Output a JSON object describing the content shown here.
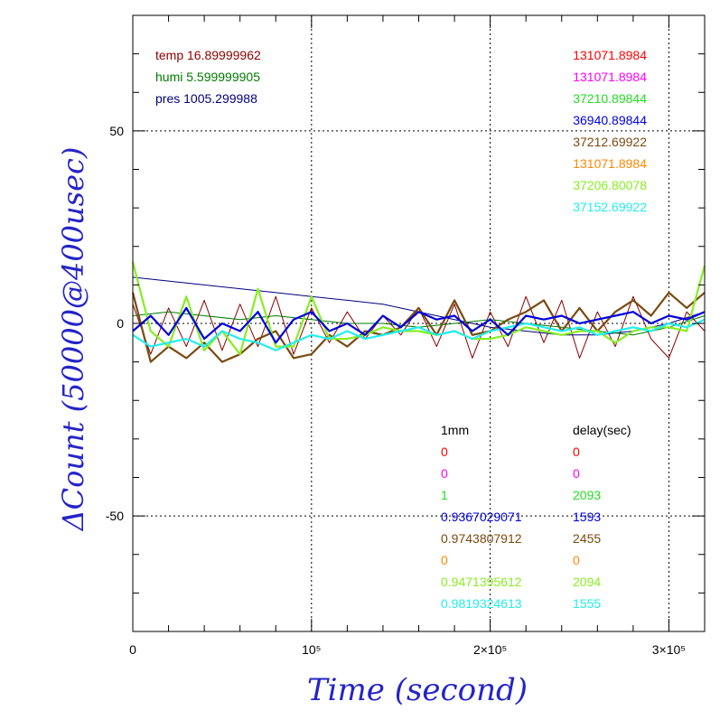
{
  "chart_data": {
    "type": "line",
    "xlabel": "Time (second)",
    "ylabel": "ΔCount (50000@400usec)",
    "xlim": [
      0,
      320000
    ],
    "ylim": [
      -80,
      80
    ],
    "grid": true,
    "x_ticks": [
      {
        "value": 0,
        "label": "0"
      },
      {
        "value": 100000,
        "label": "10⁵"
      },
      {
        "value": 200000,
        "label": "2×10⁵"
      },
      {
        "value": 300000,
        "label": "3×10⁵"
      }
    ],
    "y_ticks": [
      {
        "value": 50,
        "label": "50"
      },
      {
        "value": 0,
        "label": "0"
      },
      {
        "value": -50,
        "label": "-50"
      }
    ],
    "env_labels": [
      {
        "text": "temp 16.89999962",
        "color": "#8b0000"
      },
      {
        "text": "humi 5.599999905",
        "color": "#007a00"
      },
      {
        "text": "pres 1005.299988",
        "color": "#000080"
      }
    ],
    "top_right_values": [
      {
        "text": "131071.8984",
        "color": "#ff0000"
      },
      {
        "text": "131071.8984",
        "color": "#ff00ff"
      },
      {
        "text": "37210.89844",
        "color": "#22dd22"
      },
      {
        "text": "36940.89844",
        "color": "#0000dd"
      },
      {
        "text": "37212.69922",
        "color": "#7a4a10"
      },
      {
        "text": "131071.8984",
        "color": "#ff8800"
      },
      {
        "text": "37206.80078",
        "color": "#88ee22"
      },
      {
        "text": "37152.69922",
        "color": "#22eeee"
      }
    ],
    "table_headers": {
      "left": "1mm",
      "right": "delay(sec)"
    },
    "table_rows": [
      {
        "a": "0",
        "b": "0",
        "color": "#ff0000"
      },
      {
        "a": "0",
        "b": "0",
        "color": "#ff00ff"
      },
      {
        "a": "1",
        "b": "2093",
        "color": "#22dd22"
      },
      {
        "a": "0.9367029071",
        "b": "1593",
        "color": "#0000dd"
      },
      {
        "a": "0.9743807912",
        "b": "2455",
        "color": "#7a4a10"
      },
      {
        "a": "0",
        "b": "0",
        "color": "#ff8800"
      },
      {
        "a": "0.9471395612",
        "b": "2094",
        "color": "#88ee22"
      },
      {
        "a": "0.9819324613",
        "b": "1555",
        "color": "#22eeee"
      }
    ],
    "series": [
      {
        "color": "#8b0000",
        "x": [
          0,
          10000,
          20000,
          30000,
          40000,
          50000,
          60000,
          70000,
          80000,
          90000,
          100000,
          110000,
          120000,
          130000,
          140000,
          150000,
          160000,
          170000,
          180000,
          190000,
          200000,
          210000,
          220000,
          230000,
          240000,
          250000,
          260000,
          270000,
          280000,
          290000,
          300000,
          310000,
          320000
        ],
        "y": [
          5,
          -8,
          4,
          -6,
          6,
          -7,
          5,
          -6,
          7,
          -8,
          4,
          -5,
          3,
          -4,
          2,
          -3,
          4,
          -6,
          5,
          -9,
          3,
          -6,
          7,
          -5,
          6,
          -9,
          3,
          -6,
          7,
          -4,
          -9,
          3,
          -2
        ]
      },
      {
        "color": "#000080",
        "x": [
          0,
          20000,
          40000,
          60000,
          80000,
          100000,
          120000,
          140000,
          160000,
          180000,
          200000,
          220000,
          240000,
          260000,
          280000,
          300000,
          320000
        ],
        "y": [
          12,
          11,
          10,
          9,
          8,
          7,
          6,
          5,
          3,
          1,
          -1,
          -2,
          -3,
          -3,
          -2,
          0,
          3
        ]
      },
      {
        "color": "#007a00",
        "x": [
          0,
          20000,
          40000,
          60000,
          80000,
          100000,
          120000,
          140000,
          160000,
          180000,
          200000,
          220000,
          240000,
          260000,
          280000,
          300000,
          320000
        ],
        "y": [
          2,
          3,
          2,
          1,
          2,
          1,
          0,
          0,
          -1,
          0,
          1,
          0,
          -1,
          -2,
          -3,
          -1,
          2
        ]
      },
      {
        "color": "#7a4a10",
        "x": [
          0,
          10000,
          20000,
          30000,
          40000,
          50000,
          60000,
          70000,
          80000,
          90000,
          100000,
          110000,
          120000,
          130000,
          140000,
          150000,
          160000,
          170000,
          180000,
          190000,
          200000,
          210000,
          220000,
          230000,
          240000,
          250000,
          260000,
          270000,
          280000,
          290000,
          300000,
          310000,
          320000
        ],
        "y": [
          8,
          -10,
          -6,
          -9,
          -5,
          -10,
          -8,
          -4,
          -2,
          -9,
          -8,
          -3,
          -6,
          -2,
          -3,
          -1,
          4,
          -3,
          6,
          -3,
          -2,
          1,
          3,
          6,
          -2,
          4,
          -2,
          3,
          6,
          2,
          8,
          4,
          8
        ]
      },
      {
        "color": "#88ee22",
        "x": [
          0,
          10000,
          20000,
          30000,
          40000,
          50000,
          60000,
          70000,
          80000,
          90000,
          100000,
          110000,
          120000,
          130000,
          140000,
          150000,
          160000,
          170000,
          180000,
          190000,
          200000,
          210000,
          220000,
          230000,
          240000,
          250000,
          260000,
          270000,
          280000,
          290000,
          300000,
          310000,
          320000
        ],
        "y": [
          16,
          -2,
          -6,
          7,
          -7,
          -2,
          -8,
          9,
          -6,
          -6,
          7,
          -4,
          -4,
          -3,
          -1,
          -2,
          -2,
          -3,
          -2,
          -4,
          -4,
          -3,
          -1,
          -2,
          -3,
          -2,
          -2,
          -5,
          -2,
          -1,
          -1,
          -2,
          15
        ]
      },
      {
        "color": "#22eeee",
        "x": [
          0,
          10000,
          20000,
          30000,
          40000,
          50000,
          60000,
          70000,
          80000,
          90000,
          100000,
          110000,
          120000,
          130000,
          140000,
          150000,
          160000,
          170000,
          180000,
          190000,
          200000,
          210000,
          220000,
          230000,
          240000,
          250000,
          260000,
          270000,
          280000,
          290000,
          300000,
          310000,
          320000
        ],
        "y": [
          -3,
          -6,
          -5,
          -4,
          -6,
          -2,
          -4,
          -5,
          -7,
          -5,
          -3,
          -4,
          -2,
          -4,
          -3,
          -2,
          -1,
          -3,
          -2,
          -4,
          -2,
          -1,
          0,
          -1,
          -2,
          -1,
          -3,
          -2,
          -1,
          -2,
          0,
          -1,
          1
        ]
      },
      {
        "color": "#0000dd",
        "x": [
          0,
          10000,
          20000,
          30000,
          40000,
          50000,
          60000,
          70000,
          80000,
          90000,
          100000,
          110000,
          120000,
          130000,
          140000,
          150000,
          160000,
          170000,
          180000,
          190000,
          200000,
          210000,
          220000,
          230000,
          240000,
          250000,
          260000,
          270000,
          280000,
          290000,
          300000,
          310000,
          320000
        ],
        "y": [
          -2,
          2,
          -3,
          4,
          -4,
          0,
          -2,
          3,
          -5,
          1,
          3,
          -2,
          0,
          -3,
          2,
          -1,
          3,
          1,
          2,
          -2,
          1,
          -3,
          2,
          1,
          2,
          0,
          1,
          2,
          3,
          0,
          2,
          1,
          3
        ]
      }
    ]
  }
}
